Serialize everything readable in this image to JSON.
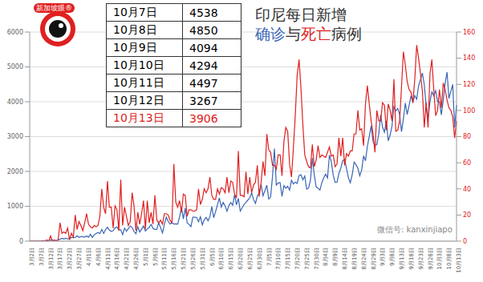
{
  "chart_data": {
    "type": "line",
    "title": "印尼每日新增",
    "subtitle": "确诊与死亡病例",
    "categories": [
      "3月2日",
      null,
      null,
      null,
      null,
      "3月7日",
      null,
      null,
      null,
      null,
      "3月12日",
      null,
      null,
      null,
      null,
      "3月17日",
      null,
      null,
      null,
      null,
      "3月22日",
      null,
      null,
      null,
      null,
      "3月27日",
      null,
      null,
      null,
      null,
      "4月1日",
      null,
      null,
      null,
      null,
      "4月6日",
      null,
      null,
      null,
      null,
      "4月11日",
      null,
      null,
      null,
      null,
      "4月16日",
      null,
      null,
      null,
      null,
      "4月21日",
      null,
      null,
      null,
      null,
      "4月26日",
      null,
      null,
      null,
      null,
      "5月1日",
      null,
      null,
      null,
      null,
      "5月6日",
      null,
      null,
      null,
      null,
      "5月11日",
      null,
      null,
      null,
      null,
      "5月16日",
      null,
      null,
      null,
      null,
      "5月21日",
      null,
      null,
      null,
      null,
      "5月26日",
      null,
      null,
      null,
      null,
      "5月31日",
      null,
      null,
      null,
      null,
      "6月5日",
      null,
      null,
      null,
      null,
      "6月10日",
      null,
      null,
      null,
      null,
      "6月15日",
      null,
      null,
      null,
      null,
      "6月20日",
      null,
      null,
      null,
      null,
      "6月25日",
      null,
      null,
      null,
      null,
      "6月30日",
      null,
      null,
      null,
      null,
      "7月5日",
      null,
      null,
      null,
      null,
      "7月10日",
      null,
      null,
      null,
      null,
      "7月15日",
      null,
      null,
      null,
      null,
      "7月20日",
      null,
      null,
      null,
      null,
      "7月25日",
      null,
      null,
      null,
      null,
      "7月30日",
      null,
      null,
      null,
      null,
      "8月4日",
      null,
      null,
      null,
      null,
      "8月9日",
      null,
      null,
      null,
      null,
      "8月14日",
      null,
      null,
      null,
      null,
      "8月19日",
      null,
      null,
      null,
      null,
      "8月24日",
      null,
      null,
      null,
      null,
      "8月29日",
      null,
      null,
      null,
      null,
      "9月3日",
      null,
      null,
      null,
      null,
      "9月8日",
      null,
      null,
      null,
      null,
      "9月13日",
      null,
      null,
      null,
      null,
      "9月18日",
      null,
      null,
      null,
      null,
      "9月23日",
      null,
      null,
      null,
      null,
      "9月28日",
      null,
      null,
      null,
      null,
      "10月3日",
      null,
      null,
      null,
      null,
      "10月8日",
      null,
      null,
      null,
      null,
      "10月13日"
    ],
    "series": [
      {
        "name": "确诊",
        "color": "#3a66b5",
        "values": [
          2,
          0,
          0,
          0,
          2,
          0,
          2,
          13,
          8,
          7,
          0,
          35,
          27,
          21,
          17,
          38,
          55,
          82,
          60,
          81,
          64,
          65,
          107,
          104,
          103,
          153,
          109,
          130,
          129,
          114,
          149,
          113,
          196,
          106,
          181,
          218,
          247,
          218,
          337,
          219,
          330,
          399,
          316,
          282,
          297,
          380,
          407,
          325,
          327,
          185,
          375,
          283,
          357,
          436,
          396,
          275,
          214,
          415,
          260,
          347,
          433,
          292,
          349,
          395,
          484,
          367,
          338,
          336,
          533,
          387,
          233,
          484,
          689,
          568,
          490,
          529,
          489,
          496,
          486,
          693,
          973,
          634,
          949,
          526,
          479,
          415,
          686,
          687,
          678,
          557,
          700,
          467,
          609,
          684,
          585,
          703,
          993,
          672,
          847,
          1043,
          1241,
          979,
          1111,
          1014,
          857,
          1017,
          1106,
          1031,
          1331,
          1041,
          1226,
          862,
          954,
          1051,
          1113,
          1178,
          1240,
          1385,
          1198,
          1082,
          1293,
          1385,
          1624,
          1301,
          1447,
          1607,
          1209,
          1268,
          1853,
          2657,
          1611,
          1671,
          1681,
          1282,
          1591,
          1522,
          1574,
          1462,
          1752,
          1639,
          1693,
          1655,
          1882,
          1906,
          1761,
          1868,
          1492,
          1525,
          1748,
          2381,
          1904,
          1560,
          1519,
          1462,
          1679,
          1815,
          1922,
          1815,
          2473,
          2277,
          1893,
          1687,
          1693,
          1942,
          2098,
          2307,
          2345,
          2081,
          1821,
          1673,
          1902,
          2266,
          2197,
          2090,
          1877,
          2037,
          2447,
          2306,
          2719,
          3003,
          3308,
          2858,
          2743,
          2775,
          3075,
          3622,
          3269,
          3128,
          3444,
          2880,
          3046,
          3307,
          3861,
          3737,
          3806,
          3636,
          3141,
          3507,
          3963,
          3635,
          3891,
          4168,
          3989,
          4176,
          4071,
          4465,
          4634,
          4823,
          4494,
          3874,
          3509,
          4002,
          4284,
          4174,
          4317,
          4007,
          3992,
          3622,
          4056,
          4538,
          4850,
          4094,
          4294,
          4497,
          3267,
          3906
        ]
      },
      {
        "name": "死亡",
        "color": "#e02020",
        "axis": "y2",
        "values": [
          0,
          0,
          0,
          0,
          0,
          0,
          0,
          0,
          0,
          1,
          0,
          4,
          0,
          1,
          0,
          1,
          14,
          6,
          7,
          6,
          10,
          1,
          6,
          3,
          20,
          9,
          15,
          12,
          8,
          14,
          21,
          13,
          11,
          10,
          12,
          11,
          12,
          19,
          40,
          26,
          21,
          46,
          26,
          26,
          10,
          27,
          24,
          8,
          47,
          12,
          26,
          19,
          12,
          15,
          37,
          27,
          8,
          22,
          13,
          21,
          31,
          9,
          31,
          14,
          22,
          13,
          35,
          16,
          14,
          16,
          13,
          21,
          21,
          20,
          16,
          14,
          59,
          30,
          26,
          31,
          22,
          36,
          35,
          19,
          24,
          24,
          23,
          23,
          24,
          40,
          28,
          32,
          40,
          37,
          40,
          49,
          35,
          32,
          32,
          40,
          36,
          41,
          40,
          37,
          49,
          37,
          46,
          45,
          36,
          33,
          69,
          35,
          35,
          34,
          53,
          36,
          49,
          37,
          43,
          45,
          58,
          34,
          45,
          61,
          50,
          82,
          70,
          68,
          58,
          58,
          55,
          66,
          66,
          50,
          76,
          87,
          84,
          59,
          49,
          71,
          96,
          127,
          139,
          117,
          89,
          66,
          61,
          57,
          56,
          74,
          57,
          62,
          73,
          64,
          66,
          65,
          64,
          68,
          72,
          65,
          66,
          57,
          59,
          79,
          65,
          79,
          58,
          67,
          65,
          69,
          69,
          82,
          82,
          100,
          85,
          86,
          73,
          105,
          119,
          105,
          92,
          82,
          68,
          100,
          92,
          92,
          106,
          104,
          85,
          105,
          100,
          92,
          124,
          84,
          85,
          92,
          118,
          145,
          135,
          122,
          116,
          114,
          106,
          124,
          150,
          140,
          128,
          115,
          87,
          106,
          87,
          128,
          139,
          116,
          96,
          100,
          116,
          102,
          121,
          116,
          108,
          102,
          100,
          95,
          79,
          92
        ]
      }
    ],
    "ylim": [
      0,
      6000
    ],
    "yticks": [
      0,
      1000,
      2000,
      3000,
      4000,
      5000,
      6000
    ],
    "y2lim": [
      0,
      160
    ],
    "y2ticks": [
      0,
      20,
      40,
      60,
      80,
      100,
      120,
      140,
      160
    ],
    "grid": true,
    "table": {
      "rows": [
        {
          "date": "10月7日",
          "value": 4538,
          "color": "#000000"
        },
        {
          "date": "10月8日",
          "value": 4850,
          "color": "#000000"
        },
        {
          "date": "10月9日",
          "value": 4094,
          "color": "#000000"
        },
        {
          "date": "10月10日",
          "value": 4294,
          "color": "#000000"
        },
        {
          "date": "10月11日",
          "value": 4497,
          "color": "#000000"
        },
        {
          "date": "10月12日",
          "value": 3267,
          "color": "#000000"
        },
        {
          "date": "10月13日",
          "value": 3906,
          "color": "#e02020"
        }
      ]
    },
    "annotations": [
      "新加坡眼®",
      "微信号: kanxinjiapo"
    ]
  }
}
